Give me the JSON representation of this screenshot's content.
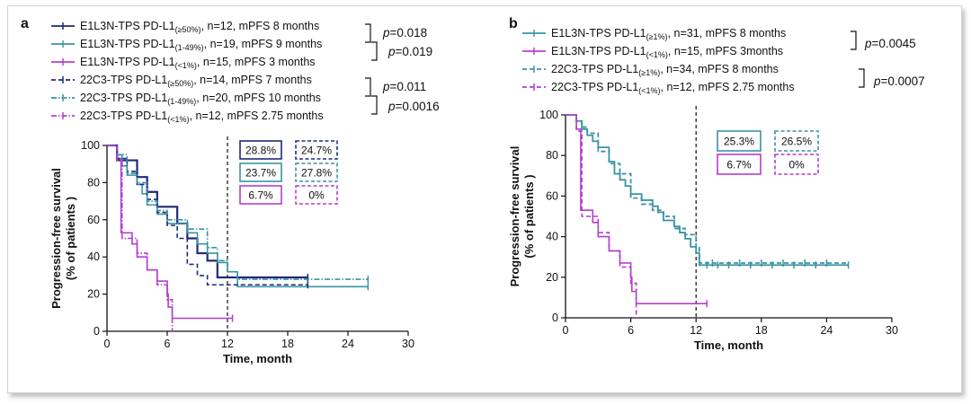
{
  "chart_data": [
    {
      "panel": "a",
      "type": "line",
      "step": true,
      "xlabel": "Time, month",
      "ylabel": "Progression-free survival",
      "ylabel2": "(% of patients )",
      "xlim": [
        0,
        30
      ],
      "ylim": [
        0,
        100
      ],
      "xticks": [
        0,
        6,
        12,
        18,
        24,
        30
      ],
      "yticks": [
        0,
        20,
        40,
        60,
        80,
        100
      ],
      "vline_x": 12,
      "colors": {
        "navy": "#1f2a78",
        "teal": "#3a94a4",
        "magenta": "#b43fcf"
      },
      "legend": [
        {
          "pre": "E1L3N-TPS PD-L1",
          "sub": "(≥50%)",
          "post": ", n=12, mPFS 8 months",
          "color": "#1f2a78",
          "dash": "solid"
        },
        {
          "pre": "E1L3N-TPS PD-L1",
          "sub": "(1-49%)",
          "post": ", n=19, mPFS 9 months",
          "color": "#3a94a4",
          "dash": "solid"
        },
        {
          "pre": "E1L3N-TPS PD-L1",
          "sub": "(<1%)",
          "post": ", n=15, mPFS 3 months",
          "color": "#b43fcf",
          "dash": "solid"
        },
        {
          "pre": "22C3-TPS PD-L1",
          "sub": "(≥50%)",
          "post": ", n=14, mPFS 7 months",
          "color": "#1f2a78",
          "dash": "dash"
        },
        {
          "pre": "22C3-TPS PD-L1",
          "sub": "(1-49%)",
          "post": ", n=20, mPFS 10 months",
          "color": "#3a94a4",
          "dash": "dashdot"
        },
        {
          "pre": "22C3-TPS PD-L1",
          "sub": "(<1%)",
          "post": ", n=12, mPFS 2.75 months",
          "color": "#b43fcf",
          "dash": "dashdot"
        }
      ],
      "pvalues": [
        "p=0.018",
        "p=0.019",
        "p=0.011",
        "p=0.0016"
      ],
      "boxes": [
        {
          "label": "28.8%",
          "color": "#1f2a78",
          "dashed": false
        },
        {
          "label": "24.7%",
          "color": "#1f2a78",
          "dashed": true
        },
        {
          "label": "23.7%",
          "color": "#3a94a4",
          "dashed": false
        },
        {
          "label": "27.8%",
          "color": "#3a94a4",
          "dashed": true
        },
        {
          "label": "6.7%",
          "color": "#b43fcf",
          "dashed": false
        },
        {
          "label": "0%",
          "color": "#b43fcf",
          "dashed": true
        }
      ],
      "series": [
        {
          "name": "E1L3N-TPS PD-L1 (≥50%)",
          "color": "#1f2a78",
          "dash": "solid",
          "width": 2.2,
          "points": [
            [
              0,
              100
            ],
            [
              1,
              92
            ],
            [
              3,
              83
            ],
            [
              4,
              75
            ],
            [
              5,
              67
            ],
            [
              7,
              58
            ],
            [
              8,
              50
            ],
            [
              9,
              42
            ],
            [
              10,
              38
            ],
            [
              11,
              29
            ],
            [
              20,
              29
            ]
          ],
          "censors": [
            [
              20,
              29
            ]
          ]
        },
        {
          "name": "E1L3N-TPS PD-L1 (1-49%)",
          "color": "#3a94a4",
          "dash": "solid",
          "width": 1.6,
          "points": [
            [
              0,
              100
            ],
            [
              1,
              95
            ],
            [
              1.5,
              89
            ],
            [
              2,
              84
            ],
            [
              3,
              79
            ],
            [
              3.5,
              74
            ],
            [
              4,
              68
            ],
            [
              5,
              63
            ],
            [
              6,
              58
            ],
            [
              8,
              53
            ],
            [
              9,
              47
            ],
            [
              10,
              42
            ],
            [
              11,
              37
            ],
            [
              12,
              32
            ],
            [
              13,
              24
            ],
            [
              26,
              24
            ]
          ],
          "censors": [
            [
              26,
              24
            ]
          ]
        },
        {
          "name": "E1L3N-TPS PD-L1 (<1%)",
          "color": "#b43fcf",
          "dash": "solid",
          "width": 1.6,
          "points": [
            [
              0,
              100
            ],
            [
              1,
              93
            ],
            [
              1.4,
              53
            ],
            [
              2.5,
              47
            ],
            [
              3,
              40
            ],
            [
              4,
              33
            ],
            [
              5,
              27
            ],
            [
              6,
              20
            ],
            [
              6.1,
              13
            ],
            [
              6.5,
              7
            ],
            [
              12.5,
              7
            ]
          ],
          "censors": [
            [
              6,
              22
            ],
            [
              12.5,
              7
            ]
          ]
        },
        {
          "name": "22C3-TPS PD-L1 (≥50%)",
          "color": "#1f2a78",
          "dash": "dash",
          "width": 1.6,
          "points": [
            [
              0,
              100
            ],
            [
              1,
              93
            ],
            [
              2,
              86
            ],
            [
              3,
              79
            ],
            [
              4,
              71
            ],
            [
              5,
              64
            ],
            [
              6,
              57
            ],
            [
              7,
              50
            ],
            [
              8,
              36
            ],
            [
              9,
              30
            ],
            [
              10,
              25
            ],
            [
              20,
              25
            ]
          ],
          "censors": [
            [
              20,
              25
            ]
          ]
        },
        {
          "name": "22C3-TPS PD-L1 (1-49%)",
          "color": "#3a94a4",
          "dash": "dashdot",
          "width": 1.6,
          "points": [
            [
              0,
              100
            ],
            [
              1,
              95
            ],
            [
              2,
              85
            ],
            [
              3,
              80
            ],
            [
              4,
              70
            ],
            [
              5,
              65
            ],
            [
              6,
              60
            ],
            [
              8,
              55
            ],
            [
              10,
              45
            ],
            [
              11,
              38
            ],
            [
              12,
              32
            ],
            [
              13,
              28
            ],
            [
              26,
              28
            ]
          ],
          "censors": [
            [
              26,
              28
            ]
          ]
        },
        {
          "name": "22C3-TPS PD-L1 (<1%)",
          "color": "#b43fcf",
          "dash": "dashdot",
          "width": 1.6,
          "points": [
            [
              0,
              100
            ],
            [
              1,
              92
            ],
            [
              1.5,
              50
            ],
            [
              3,
              42
            ],
            [
              4,
              33
            ],
            [
              5,
              25
            ],
            [
              6,
              17
            ],
            [
              6.5,
              0
            ]
          ],
          "censors": []
        }
      ]
    },
    {
      "panel": "b",
      "type": "line",
      "step": true,
      "xlabel": "Time, month",
      "ylabel": "Progression-free survival",
      "ylabel2": "(% of patients )",
      "xlim": [
        0,
        30
      ],
      "ylim": [
        0,
        100
      ],
      "xticks": [
        0,
        6,
        12,
        18,
        24,
        30
      ],
      "yticks": [
        0,
        20,
        40,
        60,
        80,
        100
      ],
      "vline_x": 12,
      "colors": {
        "teal": "#3a94a4",
        "magenta": "#b43fcf"
      },
      "legend": [
        {
          "pre": "E1L3N-TPS PD-L1",
          "sub": "(≥1%)",
          "post": ", n=31, mPFS 8 months",
          "color": "#3a94a4",
          "dash": "solid"
        },
        {
          "pre": "E1L3N-TPS PD-L1",
          "sub": "(<1%)",
          "post": ", n=15, mPFS 3months",
          "color": "#b43fcf",
          "dash": "solid"
        },
        {
          "pre": "22C3-TPS PD-L1",
          "sub": "(≥1%)",
          "post": ", n=34, mPFS 8 months",
          "color": "#3a94a4",
          "dash": "dash"
        },
        {
          "pre": "22C3-TPS PD-L1",
          "sub": "(<1%)",
          "post": ", n=12, mPFS 2.75 months",
          "color": "#b43fcf",
          "dash": "dash"
        }
      ],
      "pvalues": [
        "p=0.0045",
        "p=0.0007"
      ],
      "boxes": [
        {
          "label": "25.3%",
          "color": "#3a94a4",
          "dashed": false
        },
        {
          "label": "26.5%",
          "color": "#3a94a4",
          "dashed": true
        },
        {
          "label": "6.7%",
          "color": "#b43fcf",
          "dashed": false
        },
        {
          "label": "0%",
          "color": "#b43fcf",
          "dashed": true
        }
      ],
      "series": [
        {
          "name": "E1L3N-TPS PD-L1 (≥1%)",
          "color": "#3a94a4",
          "dash": "solid",
          "width": 1.8,
          "points": [
            [
              0,
              100
            ],
            [
              1,
              97
            ],
            [
              1.5,
              93
            ],
            [
              2,
              90
            ],
            [
              2.5,
              87
            ],
            [
              3,
              84
            ],
            [
              4,
              77
            ],
            [
              4.5,
              71
            ],
            [
              5,
              68
            ],
            [
              5.5,
              65
            ],
            [
              6,
              61
            ],
            [
              7,
              58
            ],
            [
              8,
              55
            ],
            [
              8.5,
              52
            ],
            [
              9,
              48
            ],
            [
              10,
              45
            ],
            [
              10.5,
              42
            ],
            [
              11,
              39
            ],
            [
              11.5,
              35
            ],
            [
              12,
              32
            ],
            [
              12.3,
              26
            ],
            [
              26,
              26
            ]
          ],
          "censors": [
            [
              13,
              26
            ],
            [
              14,
              26
            ],
            [
              15,
              26
            ],
            [
              17,
              26
            ],
            [
              19,
              26
            ],
            [
              21,
              26
            ],
            [
              23,
              26
            ],
            [
              26,
              26
            ]
          ]
        },
        {
          "name": "E1L3N-TPS PD-L1 (<1%)",
          "color": "#b43fcf",
          "dash": "solid",
          "width": 1.6,
          "points": [
            [
              0,
              100
            ],
            [
              1,
              93
            ],
            [
              1.4,
              53
            ],
            [
              2.5,
              47
            ],
            [
              3,
              40
            ],
            [
              4,
              33
            ],
            [
              5,
              27
            ],
            [
              6,
              20
            ],
            [
              6.1,
              13
            ],
            [
              6.5,
              7
            ],
            [
              13,
              7
            ]
          ],
          "censors": [
            [
              6,
              21
            ],
            [
              13,
              7
            ]
          ]
        },
        {
          "name": "22C3-TPS PD-L1 (≥1%)",
          "color": "#3a94a4",
          "dash": "dash",
          "width": 1.8,
          "points": [
            [
              0,
              100
            ],
            [
              1,
              97
            ],
            [
              1.5,
              94
            ],
            [
              2,
              91
            ],
            [
              3,
              82
            ],
            [
              4,
              76
            ],
            [
              5,
              71
            ],
            [
              6,
              59
            ],
            [
              7,
              56
            ],
            [
              8,
              53
            ],
            [
              9,
              50
            ],
            [
              10,
              44
            ],
            [
              11,
              41
            ],
            [
              12,
              35
            ],
            [
              12.3,
              27
            ],
            [
              26,
              27
            ]
          ],
          "censors": [
            [
              13.5,
              27
            ],
            [
              16,
              27
            ],
            [
              18,
              27
            ],
            [
              20,
              27
            ],
            [
              22,
              27
            ],
            [
              24,
              27
            ]
          ]
        },
        {
          "name": "22C3-TPS PD-L1 (<1%)",
          "color": "#b43fcf",
          "dash": "dash",
          "width": 1.6,
          "points": [
            [
              0,
              100
            ],
            [
              1,
              92
            ],
            [
              1.5,
              50
            ],
            [
              3,
              42
            ],
            [
              4,
              33
            ],
            [
              5,
              25
            ],
            [
              6,
              17
            ],
            [
              6.5,
              0
            ]
          ],
          "censors": []
        }
      ]
    }
  ]
}
